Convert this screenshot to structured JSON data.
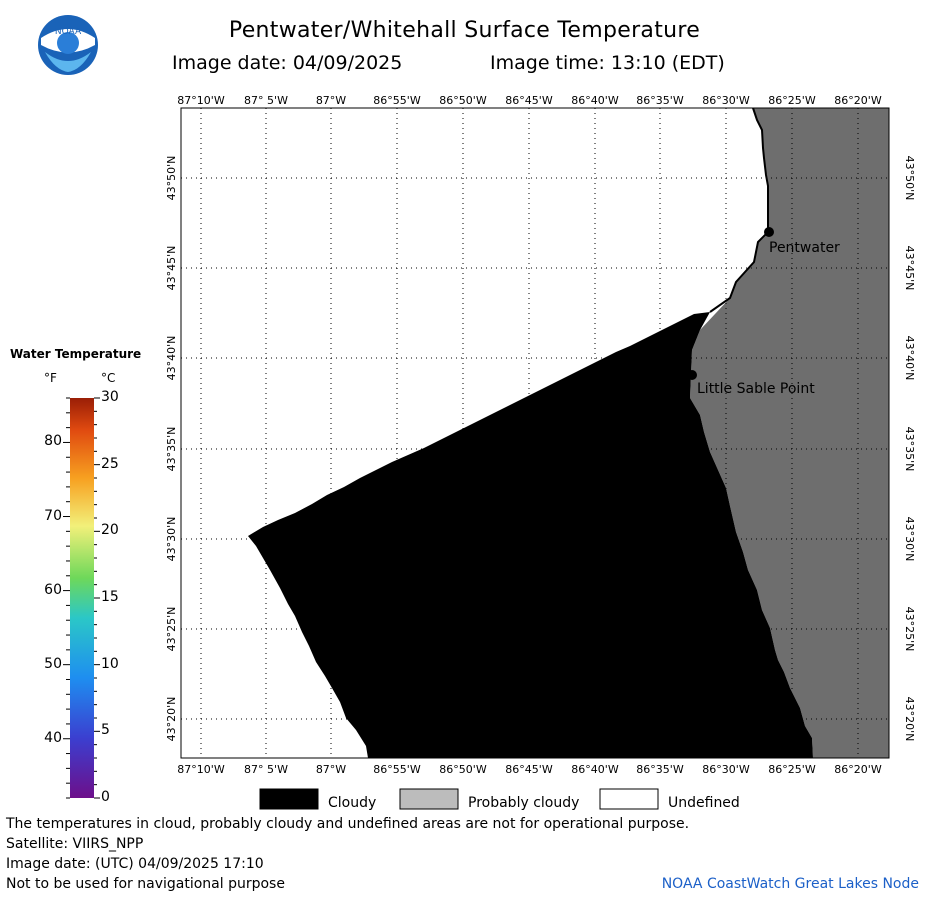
{
  "header": {
    "title": "Pentwater/Whitehall Surface Temperature",
    "date_label": "Image date: 04/09/2025",
    "time_label": "Image time: 13:10 (EDT)",
    "logo_text": "NOAA"
  },
  "map": {
    "lon_labels": [
      "87°10'W",
      "87° 5'W",
      "87°W",
      "86°55'W",
      "86°50'W",
      "86°45'W",
      "86°40'W",
      "86°35'W",
      "86°30'W",
      "86°25'W",
      "86°20'W"
    ],
    "lat_labels": [
      "43°50'N",
      "43°45'N",
      "43°40'N",
      "43°35'N",
      "43°30'N",
      "43°25'N",
      "43°20'N"
    ],
    "places": [
      {
        "name": "Pentwater"
      },
      {
        "name": "Little Sable Point"
      }
    ],
    "colors": {
      "cloudy": "#000000",
      "probably_cloudy": "#6e6e6e",
      "undefined": "#ffffff"
    }
  },
  "legend": {
    "title": "Water Temperature",
    "unit_f": "°F",
    "unit_c": "°C",
    "f_ticks": [
      "80",
      "70",
      "60",
      "50",
      "40"
    ],
    "c_ticks": [
      "30",
      "25",
      "20",
      "15",
      "10",
      "5",
      "0"
    ],
    "categories": [
      "Cloudy",
      "Probably cloudy",
      "Undefined"
    ]
  },
  "footer": {
    "disclaimer": "The temperatures in cloud, probably cloudy and undefined areas are not for operational purpose.",
    "satellite": "Satellite: VIIRS_NPP",
    "utc_date": "Image date: (UTC) 04/09/2025  17:10",
    "nav_warning": "Not to be used for navigational purpose",
    "credit": "NOAA CoastWatch Great Lakes Node"
  }
}
